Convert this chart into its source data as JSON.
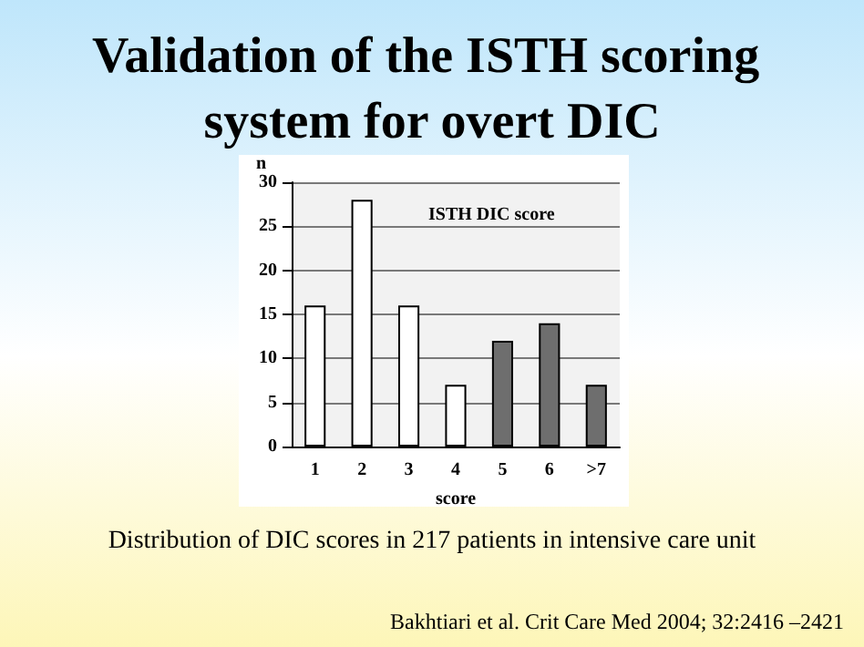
{
  "chart_data": {
    "type": "bar",
    "title": "Validation of the ISTH scoring system for overt DIC",
    "subtitle": "ISTH DIC score",
    "xlabel": "score",
    "ylabel": "n",
    "categories": [
      "1",
      "2",
      "3",
      "4",
      "5",
      "6",
      ">7"
    ],
    "values": [
      16,
      28,
      16,
      7,
      12,
      14,
      7
    ],
    "colors": [
      "#ffffff",
      "#ffffff",
      "#ffffff",
      "#ffffff",
      "#6e6e6e",
      "#6e6e6e",
      "#6e6e6e"
    ],
    "ylim": [
      0,
      30
    ],
    "yticks": [
      0,
      5,
      10,
      15,
      20,
      25,
      30
    ],
    "grid": "y",
    "annotations": [
      "Distribution of DIC scores in 217 patients in intensive care unit",
      "Bakhtiari et al. Crit Care Med 2004; 32:2416 –2421"
    ]
  }
}
